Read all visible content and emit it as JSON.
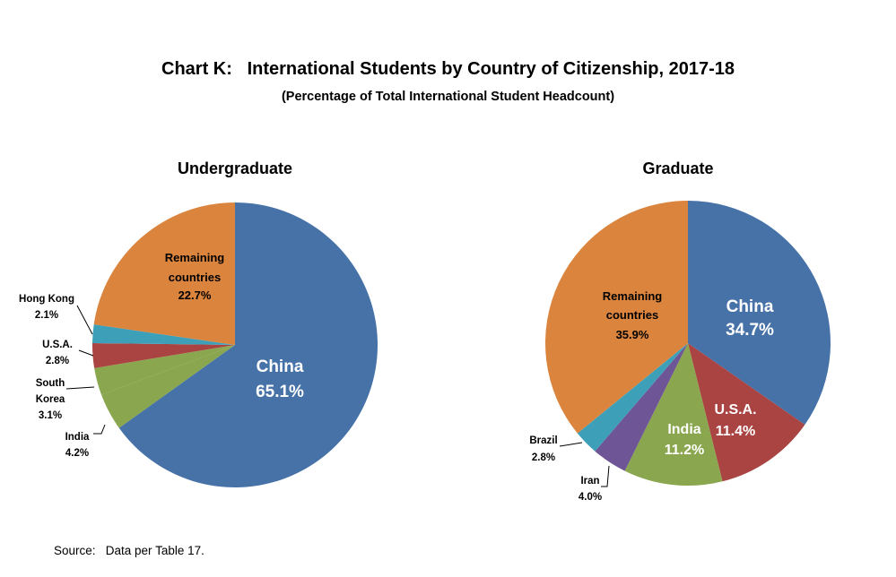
{
  "title": "Chart K:   International Students by Country of Citizenship, 2017-18",
  "subtitle": "(Percentage of Total International Student Headcount)",
  "source": "Source:   Data per Table 17.",
  "colors": {
    "china": "#4672A8",
    "usa": "#A94442",
    "india": "#8AA64E",
    "iran": "#6E5596",
    "brazil": "#3DA0B8",
    "south_korea": "#8AA64E",
    "hong_kong": "#3DA0B8",
    "remaining": "#DB843D"
  },
  "chart_data": [
    {
      "type": "pie",
      "title": "Undergraduate",
      "slices": [
        {
          "name": "China",
          "value": 65.1,
          "label_lines": [
            "China"
          ],
          "pct": "65.1%"
        },
        {
          "name": "India",
          "value": 4.2,
          "label_lines": [
            "India"
          ],
          "pct": "4.2%"
        },
        {
          "name": "South Korea",
          "value": 3.1,
          "label_lines": [
            "South",
            "Korea"
          ],
          "pct": "3.1%"
        },
        {
          "name": "U.S.A.",
          "value": 2.8,
          "label_lines": [
            "U.S.A."
          ],
          "pct": "2.8%"
        },
        {
          "name": "Hong Kong",
          "value": 2.1,
          "label_lines": [
            "Hong Kong"
          ],
          "pct": "2.1%"
        },
        {
          "name": "Remaining countries",
          "value": 22.7,
          "label_lines": [
            "Remaining",
            "countries"
          ],
          "pct": "22.7%"
        }
      ]
    },
    {
      "type": "pie",
      "title": "Graduate",
      "slices": [
        {
          "name": "China",
          "value": 34.7,
          "label_lines": [
            "China"
          ],
          "pct": "34.7%"
        },
        {
          "name": "U.S.A.",
          "value": 11.4,
          "label_lines": [
            "U.S.A."
          ],
          "pct": "11.4%"
        },
        {
          "name": "India",
          "value": 11.2,
          "label_lines": [
            "India"
          ],
          "pct": "11.2%"
        },
        {
          "name": "Iran",
          "value": 4.0,
          "label_lines": [
            "Iran"
          ],
          "pct": "4.0%"
        },
        {
          "name": "Brazil",
          "value": 2.8,
          "label_lines": [
            "Brazil"
          ],
          "pct": "2.8%"
        },
        {
          "name": "Remaining countries",
          "value": 35.9,
          "label_lines": [
            "Remaining",
            "countries"
          ],
          "pct": "35.9%"
        }
      ]
    }
  ]
}
